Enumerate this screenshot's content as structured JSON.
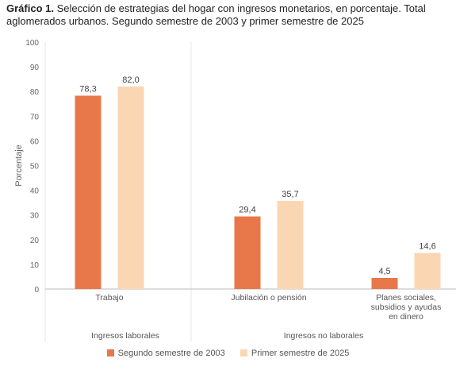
{
  "title": {
    "lead": "Gráfico 1.",
    "text": " Selección de estrategias del hogar con ingresos monetarios, en porcentaje. Total aglomerados urbanos. Segundo semestre de 2003 y primer semestre de 2025"
  },
  "colors": {
    "series_2003": "#E8784A",
    "series_2025": "#FAD7B2",
    "grid": "#E4E4E4",
    "axis_text": "#666666"
  },
  "chart_data": {
    "type": "bar",
    "title": "Selección de estrategias del hogar con ingresos monetarios, en porcentaje. Total aglomerados urbanos. Segundo semestre de 2003 y primer semestre de 2025",
    "ylabel": "Porcentaje",
    "xlabel": "",
    "ylim": [
      0,
      100
    ],
    "yticks": [
      0,
      10,
      20,
      30,
      40,
      50,
      60,
      70,
      80,
      90,
      100
    ],
    "grid": false,
    "legend_position": "bottom",
    "categories": [
      [
        "Trabajo"
      ],
      [
        "Jubilación o pensión"
      ],
      [
        "Planes sociales,",
        "subsidios y ayudas",
        "en dinero"
      ]
    ],
    "groups": [
      {
        "label": "Ingresos laborales",
        "categories": [
          0
        ]
      },
      {
        "label": "Ingresos no laborales",
        "categories": [
          1,
          2
        ]
      }
    ],
    "series": [
      {
        "name": "Segundo semestre de 2003",
        "values": [
          78.3,
          29.4,
          4.5
        ],
        "labels": [
          "78,3",
          "29,4",
          "4,5"
        ]
      },
      {
        "name": "Primer semestre de 2025",
        "values": [
          82.0,
          35.7,
          14.6
        ],
        "labels": [
          "82,0",
          "35,7",
          "14,6"
        ]
      }
    ]
  }
}
